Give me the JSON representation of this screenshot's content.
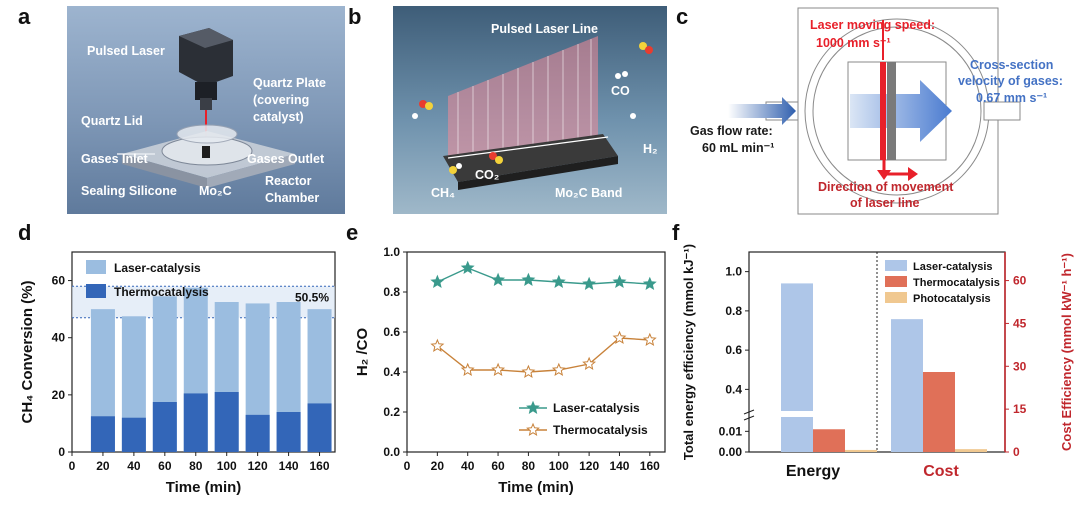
{
  "panels": {
    "a": {
      "letter": "a",
      "labels": {
        "pulsed_laser": "Pulsed Laser",
        "quartz_plate": "Quartz Plate",
        "quartz_plate_2": "(covering",
        "quartz_plate_3": "catalyst)",
        "quartz_lid": "Quartz Lid",
        "gases_inlet": "Gases Inlet",
        "gases_outlet": "Gases Outlet",
        "sealing_silicone": "Sealing Silicone",
        "mo2c": "Mo₂C",
        "reactor": "Reactor",
        "chamber": "Chamber"
      }
    },
    "b": {
      "letter": "b",
      "labels": {
        "pulsed_laser_line": "Pulsed Laser Line",
        "co": "CO",
        "h2": "H₂",
        "ch4": "CH₄",
        "co2": "CO₂",
        "mo2c_band": "Mo₂C Band"
      }
    },
    "c": {
      "letter": "c",
      "labels": {
        "laser_speed_1": "Laser moving speed:",
        "laser_speed_2": "1000 mm s⁻¹",
        "cross_1": "Cross-section",
        "cross_2": "velocity of gases:",
        "cross_3": "0.67 mm s⁻¹",
        "gas_flow_1": "Gas flow rate:",
        "gas_flow_2": "60 mL min⁻¹",
        "direction_1": "Direction of movement",
        "direction_2": "of laser line"
      }
    },
    "d": {
      "letter": "d"
    },
    "e": {
      "letter": "e"
    },
    "f": {
      "letter": "f"
    }
  },
  "colors": {
    "laser_red": "#e8202a",
    "blue_text": "#4472c4",
    "teal": "#3a9a8c",
    "orange": "#c8823a",
    "light_blue_bar": "#9bbde0",
    "dark_blue_bar": "#3366b8",
    "cost_red": "#c0272d"
  },
  "chart_data": [
    {
      "id": "d",
      "type": "bar",
      "stacked": true,
      "categories": [
        "20",
        "40",
        "60",
        "80",
        "100",
        "120",
        "140",
        "160"
      ],
      "series": [
        {
          "name": "Thermocatalysis",
          "values": [
            12.5,
            12,
            17.5,
            20.5,
            21,
            13,
            14,
            17
          ]
        },
        {
          "name": "Laser-catalysis",
          "values": [
            50,
            47.5,
            54.5,
            57.5,
            52.5,
            52,
            52.5,
            50
          ]
        }
      ],
      "annotation": "50.5%",
      "band": [
        47,
        58
      ],
      "xlabel": "Time (min)",
      "ylabel": "CH₄ Conversion (%)",
      "x_ticks": [
        "0",
        "20",
        "40",
        "60",
        "80",
        "100",
        "120",
        "140",
        "160"
      ],
      "y_ticks": [
        "0",
        "20",
        "40",
        "60"
      ],
      "ylim": [
        0,
        70
      ],
      "legend": "top-left"
    },
    {
      "id": "e",
      "type": "line",
      "x": [
        20,
        40,
        60,
        80,
        100,
        120,
        140,
        160
      ],
      "series": [
        {
          "name": "Laser-catalysis",
          "values": [
            0.85,
            0.92,
            0.86,
            0.86,
            0.85,
            0.84,
            0.85,
            0.84
          ]
        },
        {
          "name": "Thermocatalysis",
          "values": [
            0.53,
            0.41,
            0.41,
            0.4,
            0.41,
            0.44,
            0.57,
            0.56
          ]
        }
      ],
      "xlabel": "Time (min)",
      "ylabel": "H₂ /CO",
      "x_ticks": [
        "0",
        "20",
        "40",
        "60",
        "80",
        "100",
        "120",
        "140",
        "160"
      ],
      "y_ticks": [
        "0.0",
        "0.2",
        "0.4",
        "0.6",
        "0.8",
        "1.0"
      ],
      "xlim": [
        0,
        170
      ],
      "ylim": [
        0,
        1.0
      ],
      "legend": "bottom-right"
    },
    {
      "id": "f",
      "type": "bar",
      "categories": [
        "Energy",
        "Cost"
      ],
      "series": [
        {
          "name": "Laser-catalysis",
          "values": [
            0.94,
            46.5
          ]
        },
        {
          "name": "Thermocatalysis",
          "values": [
            0.011,
            28
          ]
        },
        {
          "name": "Photocatalysis",
          "values": [
            0.001,
            1
          ]
        }
      ],
      "ylabel_left": "Total energy efficiency (mmol kJ⁻¹)",
      "ylabel_right": "Cost Efficiency (mmol kW⁻¹ h⁻¹)",
      "left_ticks_upper": [
        "0.4",
        "0.6",
        "0.8",
        "1.0"
      ],
      "left_ticks_lower": [
        "0.00",
        "0.01"
      ],
      "right_ticks": [
        "0",
        "15",
        "30",
        "45",
        "60"
      ],
      "left_ylim_upper": [
        0.3,
        1.1
      ],
      "left_ylim_lower": [
        0,
        0.015
      ],
      "right_ylim": [
        0,
        70
      ],
      "legend": "top-right"
    }
  ]
}
